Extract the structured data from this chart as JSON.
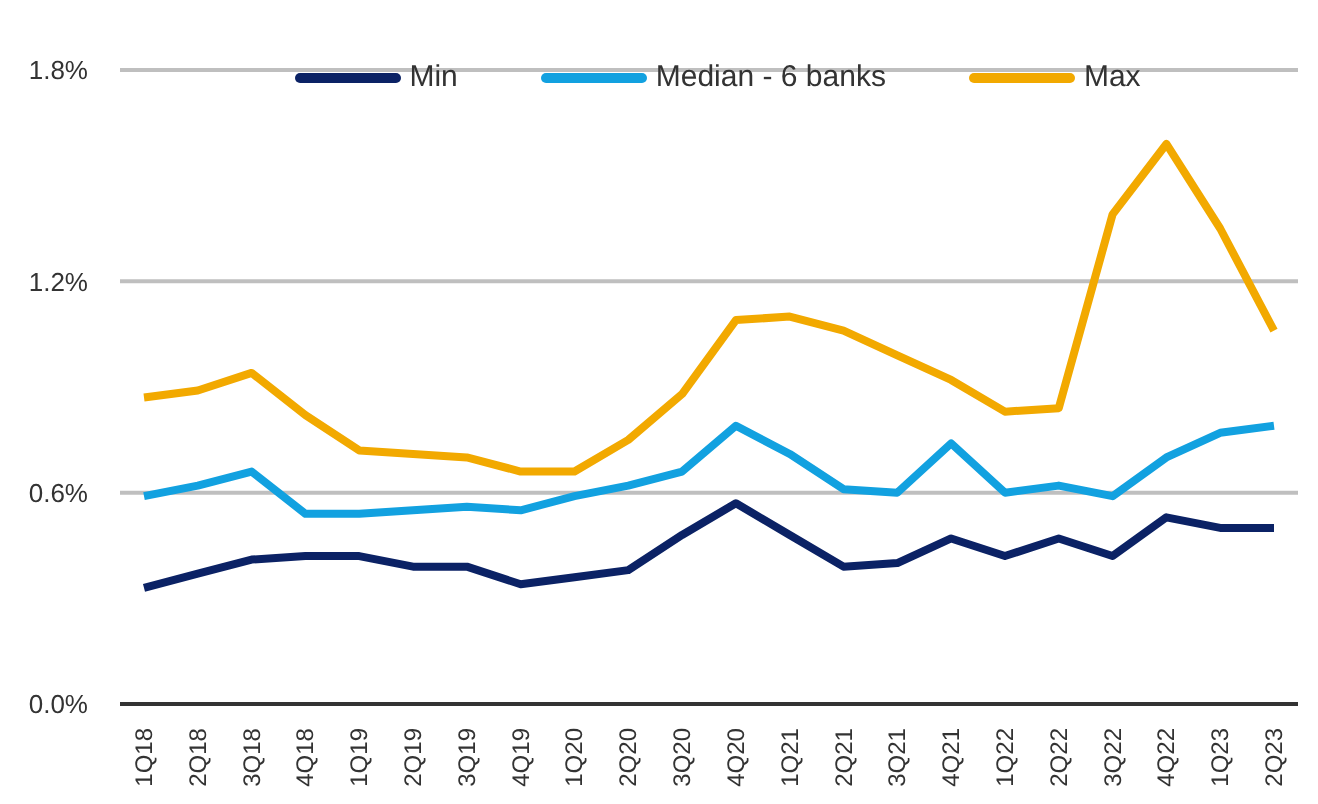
{
  "chart_data": {
    "type": "line",
    "categories": [
      "1Q18",
      "2Q18",
      "3Q18",
      "4Q18",
      "1Q19",
      "2Q19",
      "3Q19",
      "4Q19",
      "1Q20",
      "2Q20",
      "3Q20",
      "4Q20",
      "1Q21",
      "2Q21",
      "3Q21",
      "4Q21",
      "1Q22",
      "2Q22",
      "3Q22",
      "4Q22",
      "1Q23",
      "2Q23"
    ],
    "series": [
      {
        "name": "Min",
        "color": "#0b2265",
        "values": [
          0.33,
          0.37,
          0.41,
          0.42,
          0.42,
          0.39,
          0.39,
          0.34,
          0.36,
          0.38,
          0.48,
          0.57,
          0.48,
          0.39,
          0.4,
          0.47,
          0.42,
          0.47,
          0.42,
          0.53,
          0.5,
          0.5
        ]
      },
      {
        "name": "Median - 6 banks",
        "color": "#12a1e0",
        "values": [
          0.59,
          0.62,
          0.66,
          0.54,
          0.54,
          0.55,
          0.56,
          0.55,
          0.59,
          0.62,
          0.66,
          0.79,
          0.71,
          0.61,
          0.6,
          0.74,
          0.6,
          0.62,
          0.59,
          0.7,
          0.77,
          0.79
        ]
      },
      {
        "name": "Max",
        "color": "#f2a900",
        "values": [
          0.87,
          0.89,
          0.94,
          0.82,
          0.72,
          0.71,
          0.7,
          0.66,
          0.66,
          0.75,
          0.88,
          1.09,
          1.1,
          1.06,
          0.99,
          0.92,
          0.83,
          0.84,
          1.39,
          1.59,
          1.35,
          1.06
        ]
      }
    ],
    "ylim": [
      0,
      1.8
    ],
    "yticks": [
      {
        "value": 0,
        "label": "0.0%"
      },
      {
        "value": 0.6,
        "label": "0.6%"
      },
      {
        "value": 1.2,
        "label": "1.2%"
      },
      {
        "value": 1.8,
        "label": "1.8%"
      }
    ],
    "grid": "y",
    "legend": "top",
    "marker": "none",
    "line_style": "solid"
  }
}
